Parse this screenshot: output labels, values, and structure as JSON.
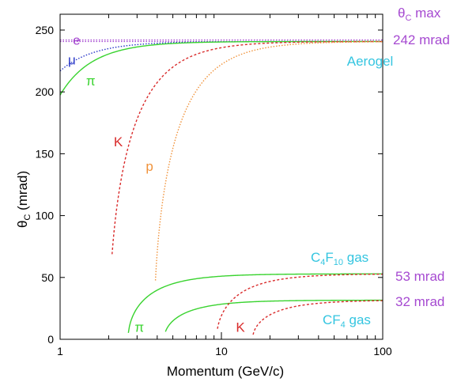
{
  "chart_data": {
    "type": "line",
    "xlabel": "Momentum (GeV/c)",
    "ylabel_main": "θ",
    "ylabel_sub": "C",
    "ylabel_tail": " (mrad)",
    "xscale": "log",
    "xlim": [
      1,
      100
    ],
    "ylim": [
      0,
      250
    ],
    "x_ticks": [
      {
        "v": 1,
        "label": "1"
      },
      {
        "v": 10,
        "label": "10"
      },
      {
        "v": 100,
        "label": "100"
      }
    ],
    "y_ticks": [
      {
        "v": 0,
        "label": "0"
      },
      {
        "v": 50,
        "label": "50"
      },
      {
        "v": 100,
        "label": "100"
      },
      {
        "v": 150,
        "label": "150"
      },
      {
        "v": 200,
        "label": "200"
      },
      {
        "v": 250,
        "label": "250"
      }
    ],
    "series": [
      {
        "radiator": "aerogel",
        "particle": "e",
        "color": "#a64ad1",
        "dash": "1.5 2",
        "mass": 0.000511,
        "n": 1.0297,
        "pmin": 1,
        "pmax": 100
      },
      {
        "radiator": "aerogel",
        "particle": "mu",
        "color": "#2a38c8",
        "dash": "1.5 2",
        "mass": 0.1057,
        "n": 1.0297,
        "pmin": 1,
        "pmax": 100
      },
      {
        "radiator": "aerogel",
        "particle": "pi",
        "color": "#39d32f",
        "dash": "",
        "mass": 0.1396,
        "n": 1.0297,
        "pmin": 1,
        "pmax": 100
      },
      {
        "radiator": "aerogel",
        "particle": "K",
        "color": "#d92b2b",
        "dash": "3 2.5",
        "mass": 0.4937,
        "n": 1.0297,
        "pmin": 2.1,
        "pmax": 100
      },
      {
        "radiator": "aerogel",
        "particle": "p",
        "color": "#f0923a",
        "dash": "1.5 2",
        "mass": 0.9383,
        "n": 1.0297,
        "pmin": 3.9,
        "pmax": 100
      },
      {
        "radiator": "C4F10",
        "particle": "pi",
        "color": "#39d32f",
        "dash": "",
        "mass": 0.1396,
        "n": 1.0014,
        "pmin": 2.65,
        "pmax": 100
      },
      {
        "radiator": "CF4",
        "particle": "pi",
        "color": "#39d32f",
        "dash": "",
        "mass": 0.1396,
        "n": 1.0005,
        "pmin": 4.5,
        "pmax": 100
      },
      {
        "radiator": "C4F10",
        "particle": "K",
        "color": "#d92b2b",
        "dash": "3 2.5",
        "mass": 0.4937,
        "n": 1.0014,
        "pmin": 9.45,
        "pmax": 100
      },
      {
        "radiator": "CF4",
        "particle": "K",
        "color": "#d92b2b",
        "dash": "3 2.5",
        "mass": 0.4937,
        "n": 1.0005,
        "pmin": 15.6,
        "pmax": 100
      }
    ],
    "max_line": {
      "value": 242,
      "color": "#a64ad1"
    },
    "labels": {
      "e": {
        "text": "e",
        "color": "#a64ad1",
        "x": 1.2,
        "y": 242
      },
      "mu": {
        "text": "μ",
        "color": "#2a38c8",
        "x": 1.12,
        "y": 226
      },
      "pi_aero": {
        "text": "π",
        "color": "#39d32f",
        "x": 1.45,
        "y": 209
      },
      "K_aero": {
        "text": "K",
        "color": "#d92b2b",
        "x": 2.15,
        "y": 160
      },
      "p_aero": {
        "text": "p",
        "color": "#f0923a",
        "x": 3.4,
        "y": 140
      },
      "pi_gas": {
        "text": "π",
        "color": "#39d32f",
        "x": 2.9,
        "y": 10
      },
      "K_gas": {
        "text": "K",
        "color": "#d92b2b",
        "x": 12.3,
        "y": 10
      }
    },
    "radiators": {
      "aerogel": {
        "text": "Aerogel",
        "color": "#34c5e0",
        "x": 60,
        "y": 225
      },
      "c4f10_main": "C",
      "c4f10_sub1": "4",
      "c4f10_mid": "F",
      "c4f10_sub2": "10",
      "c4f10_tail": " gas",
      "cf4_main": "CF",
      "cf4_sub": "4",
      "cf4_tail": " gas"
    },
    "right_annotations": {
      "theta_main": "θ",
      "theta_sub": "C",
      "theta_tail": " max",
      "max_value": "242 mrad",
      "c4f10_value": "53 mrad",
      "cf4_value": "32 mrad",
      "color": "#a64ad1"
    }
  }
}
